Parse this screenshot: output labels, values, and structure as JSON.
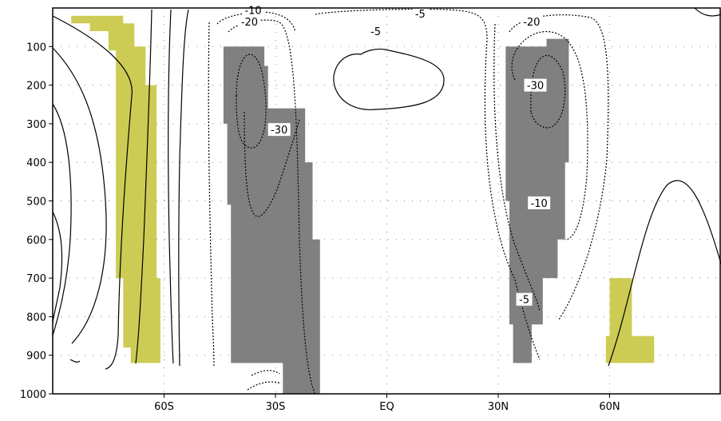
{
  "chart_data": {
    "type": "contour",
    "title": "",
    "xlabel": "",
    "ylabel": "",
    "x_axis": {
      "unit": "latitude (degrees)",
      "range": [
        -90,
        90
      ],
      "ticks": [
        {
          "value": -60,
          "label": "60S"
        },
        {
          "value": -30,
          "label": "30S"
        },
        {
          "value": 0,
          "label": "EQ"
        },
        {
          "value": 30,
          "label": "30N"
        },
        {
          "value": 60,
          "label": "60N"
        }
      ]
    },
    "y_axis": {
      "unit": "pressure level",
      "range": [
        1000,
        0
      ],
      "inverted": true,
      "ticks": [
        100,
        200,
        300,
        400,
        500,
        600,
        700,
        800,
        900,
        1000
      ]
    },
    "grid": "dotted",
    "colors": {
      "significant_negative": "#808080",
      "significant_positive": "#cccc55",
      "contour_line": "#000000",
      "axis": "#000000",
      "grid": "#888888"
    },
    "contour_labels": [
      {
        "text": "-10",
        "lat": -36,
        "p": 5
      },
      {
        "text": "-20",
        "lat": -37,
        "p": 35
      },
      {
        "text": "-5",
        "lat": 9,
        "p": 15
      },
      {
        "text": "-5",
        "lat": -3,
        "p": 60
      },
      {
        "text": "-20",
        "lat": 39,
        "p": 35
      },
      {
        "text": "-30",
        "lat": 40,
        "p": 200
      },
      {
        "text": "-30",
        "lat": -29,
        "p": 315
      },
      {
        "text": "-10",
        "lat": 41,
        "p": 505
      },
      {
        "text": "-5",
        "lat": 37,
        "p": 755
      }
    ],
    "shaded_regions": [
      {
        "sign": "negative",
        "polygon": [
          [
            -47,
            100
          ],
          [
            -33,
            100
          ],
          [
            -33,
            150
          ],
          [
            -32,
            150
          ],
          [
            -32,
            260
          ],
          [
            -22,
            260
          ],
          [
            -22,
            400
          ],
          [
            -20,
            400
          ],
          [
            -20,
            600
          ],
          [
            -18,
            600
          ],
          [
            -18,
            1000
          ],
          [
            -28,
            1000
          ],
          [
            -28,
            920
          ],
          [
            -42,
            920
          ],
          [
            -42,
            510
          ],
          [
            -43,
            510
          ],
          [
            -43,
            300
          ],
          [
            -44,
            300
          ],
          [
            -44,
            100
          ]
        ]
      },
      {
        "sign": "negative",
        "polygon": [
          [
            32,
            100
          ],
          [
            43,
            100
          ],
          [
            43,
            80
          ],
          [
            49,
            80
          ],
          [
            49,
            400
          ],
          [
            48,
            400
          ],
          [
            48,
            600
          ],
          [
            46,
            600
          ],
          [
            46,
            700
          ],
          [
            42,
            700
          ],
          [
            42,
            820
          ],
          [
            39,
            820
          ],
          [
            39,
            920
          ],
          [
            34,
            920
          ],
          [
            34,
            820
          ],
          [
            33,
            820
          ],
          [
            33,
            500
          ],
          [
            32,
            500
          ]
        ]
      },
      {
        "sign": "positive",
        "polygon": [
          [
            -85,
            20
          ],
          [
            -71,
            20
          ],
          [
            -71,
            40
          ],
          [
            -68,
            40
          ],
          [
            -68,
            100
          ],
          [
            -65,
            100
          ],
          [
            -65,
            200
          ],
          [
            -62,
            200
          ],
          [
            -62,
            700
          ],
          [
            -61,
            700
          ],
          [
            -61,
            920
          ],
          [
            -69,
            920
          ],
          [
            -69,
            880
          ],
          [
            -71,
            880
          ],
          [
            -71,
            700
          ],
          [
            -73,
            700
          ],
          [
            -73,
            110
          ],
          [
            -75,
            110
          ],
          [
            -75,
            60
          ],
          [
            -80,
            60
          ],
          [
            -80,
            40
          ],
          [
            -85,
            40
          ]
        ]
      },
      {
        "sign": "positive",
        "polygon": [
          [
            60,
            700
          ],
          [
            66,
            700
          ],
          [
            66,
            850
          ],
          [
            72,
            850
          ],
          [
            72,
            920
          ],
          [
            59,
            920
          ],
          [
            59,
            850
          ],
          [
            60,
            850
          ]
        ]
      }
    ]
  }
}
